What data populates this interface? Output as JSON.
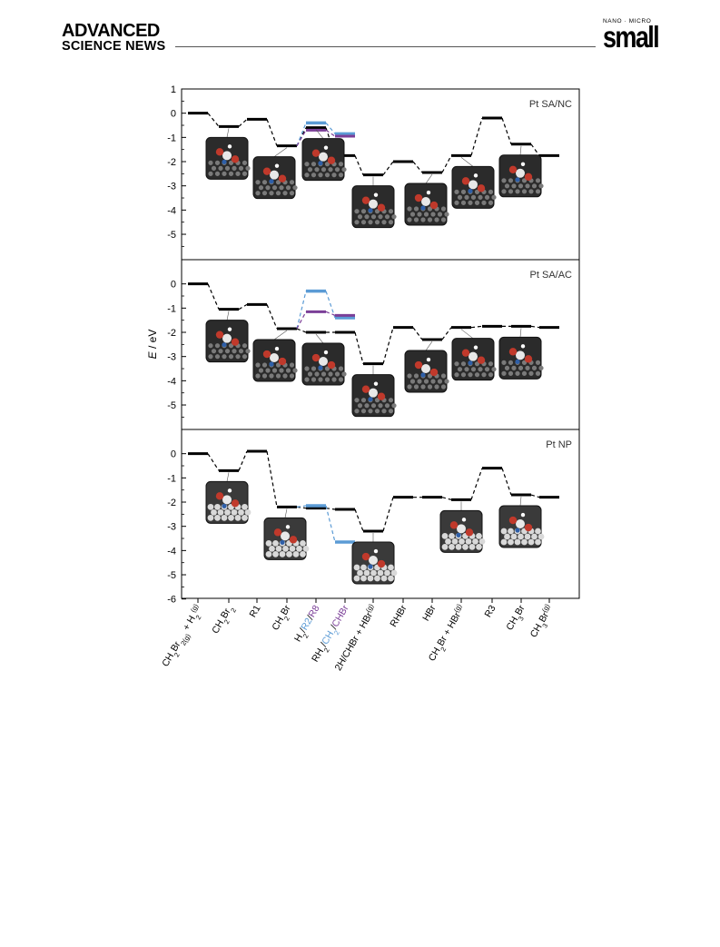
{
  "header": {
    "brand_line1": "ADVANCED",
    "brand_line2": "SCIENCE NEWS",
    "journal_sub": "NANO · MICRO",
    "journal_name": "small"
  },
  "chart_data": {
    "type": "line",
    "ylabel_italic": "E",
    "ylabel_rest": " / eV",
    "x_tick_labels": [
      [
        {
          "t": "CH"
        },
        {
          "t": "2",
          "sub": true
        },
        {
          "t": "Br"
        },
        {
          "t": "2",
          "sub": true
        },
        {
          "t": "(g)",
          "sub": true
        },
        {
          "t": " + H"
        },
        {
          "t": "2",
          "sub": true
        },
        {
          "t": "(g)",
          "sup": true
        }
      ],
      [
        {
          "t": "CH"
        },
        {
          "t": "2",
          "sub": true
        },
        {
          "t": "Br"
        },
        {
          "t": "2",
          "sub": true
        }
      ],
      [
        {
          "t": "R1"
        }
      ],
      [
        {
          "t": "CH"
        },
        {
          "t": "2",
          "sub": true
        },
        {
          "t": "Br"
        }
      ],
      [
        {
          "t": "H"
        },
        {
          "t": "2",
          "sub": true
        },
        {
          "t": "/"
        },
        {
          "t": "R2",
          "color": "#5b9bd5"
        },
        {
          "t": "/"
        },
        {
          "t": "R8",
          "color": "#7b3f98"
        }
      ],
      [
        {
          "t": "RH"
        },
        {
          "t": "2",
          "sub": true
        },
        {
          "t": "/"
        },
        {
          "t": "CH",
          "color": "#5b9bd5"
        },
        {
          "t": "2",
          "sub": true,
          "color": "#5b9bd5"
        },
        {
          "t": "/"
        },
        {
          "t": "CHBr",
          "color": "#7b3f98"
        }
      ],
      [
        {
          "t": "2H/CHBr + HBr"
        },
        {
          "t": "(g)",
          "sup": true
        }
      ],
      [
        {
          "t": "RHBr"
        }
      ],
      [
        {
          "t": "HBr"
        }
      ],
      [
        {
          "t": "CH"
        },
        {
          "t": "2",
          "sub": true
        },
        {
          "t": "Br + HBr"
        },
        {
          "t": "(g)",
          "sup": true
        }
      ],
      [
        {
          "t": "R3"
        }
      ],
      [
        {
          "t": "CH"
        },
        {
          "t": "3",
          "sub": true
        },
        {
          "t": "Br"
        }
      ],
      [
        {
          "t": "CH"
        },
        {
          "t": "3",
          "sub": true
        },
        {
          "t": "Br"
        },
        {
          "t": "(g)",
          "sup": true
        }
      ]
    ],
    "colors": {
      "main": "#000000",
      "r2_path": "#5b9bd5",
      "r8_path": "#7b3f98"
    },
    "panels": [
      {
        "title": "Pt SA/NC",
        "ylim": [
          -6,
          1
        ],
        "yticks": [
          "1",
          "0",
          "-1",
          "-2",
          "-3",
          "-4",
          "-5"
        ],
        "main": [
          0.0,
          -0.55,
          -0.25,
          -1.35,
          -0.6,
          -1.75,
          -2.55,
          -2.0,
          -2.45,
          -1.75,
          -0.2,
          -1.28,
          -1.75
        ],
        "r2_path": {
          "x": [
            4,
            5
          ],
          "values": [
            -0.4,
            -0.85
          ]
        },
        "r8_path": {
          "x": [
            4,
            5
          ],
          "values": [
            -0.7,
            -0.95
          ]
        }
      },
      {
        "title": "Pt SA/AC",
        "ylim": [
          -6,
          1
        ],
        "yticks": [
          "0",
          "-1",
          "-2",
          "-3",
          "-4",
          "-5"
        ],
        "main": [
          0.0,
          -1.05,
          -0.85,
          -1.85,
          -2.0,
          -2.0,
          -3.3,
          -1.8,
          -2.3,
          -1.8,
          -1.75,
          -1.75,
          -1.8
        ],
        "r2_path": {
          "x": [
            4,
            5
          ],
          "values": [
            -0.3,
            -1.4
          ]
        },
        "r8_path": {
          "x": [
            4,
            5
          ],
          "values": [
            -1.15,
            -1.3
          ]
        }
      },
      {
        "title": "Pt NP",
        "ylim": [
          -6,
          1
        ],
        "yticks": [
          "0",
          "-1",
          "-2",
          "-3",
          "-4",
          "-5",
          "-6"
        ],
        "main": [
          0.0,
          -0.7,
          0.1,
          -2.2,
          -2.25,
          -2.3,
          -3.2,
          -1.8,
          -1.8,
          -1.9,
          -0.6,
          -1.7,
          -1.8
        ],
        "r2_path": {
          "x": [
            4,
            5
          ],
          "values": [
            -2.15,
            -3.65
          ]
        }
      }
    ],
    "legend": "none",
    "grid": false
  }
}
